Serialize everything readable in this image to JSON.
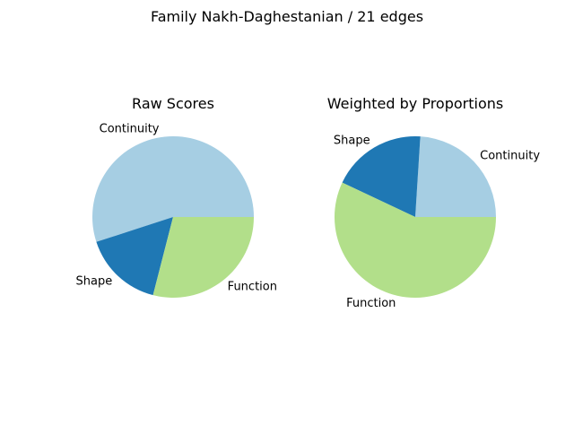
{
  "figure": {
    "suptitle": "Family Nakh-Daghestanian / 21 edges"
  },
  "chart_data": [
    {
      "type": "pie",
      "title": "Raw Scores",
      "labels": [
        "Continuity",
        "Shape",
        "Function"
      ],
      "values": [
        55,
        16,
        29
      ],
      "colors": [
        "#a6cee3",
        "#1f78b4",
        "#b2df8a"
      ],
      "start_angle": 0,
      "direction": "counterclockwise"
    },
    {
      "type": "pie",
      "title": "Weighted by Proportions",
      "labels": [
        "Continuity",
        "Shape",
        "Function"
      ],
      "values": [
        24,
        19,
        57
      ],
      "colors": [
        "#a6cee3",
        "#1f78b4",
        "#b2df8a"
      ],
      "start_angle": 0,
      "direction": "counterclockwise"
    }
  ]
}
